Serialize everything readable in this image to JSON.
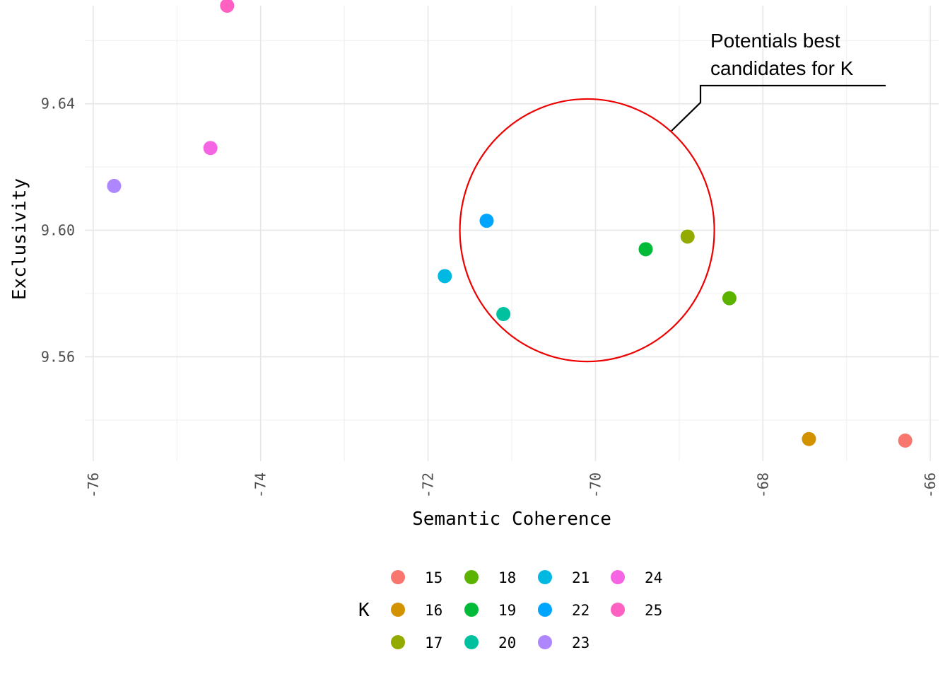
{
  "chart_data": {
    "type": "scatter",
    "xlabel": "Semantic Coherence",
    "ylabel": "Exclusivity",
    "xlim": [
      -76.1,
      -65.9
    ],
    "ylim": [
      9.527,
      9.671
    ],
    "x_ticks": [
      -76,
      -74,
      -72,
      -70,
      -68,
      -66
    ],
    "x_tick_labels": [
      "-76",
      "-74",
      "-72",
      "-70",
      "-68",
      "-66"
    ],
    "y_ticks": [
      9.56,
      9.6,
      9.64
    ],
    "y_tick_labels": [
      "9.56",
      "9.60",
      "9.64"
    ],
    "grid": true,
    "legend": {
      "title": "K",
      "placement": "bottom",
      "entries": [
        {
          "label": "15",
          "color": "#F8766D"
        },
        {
          "label": "16",
          "color": "#D39200"
        },
        {
          "label": "17",
          "color": "#93AA00"
        },
        {
          "label": "18",
          "color": "#5BB300"
        },
        {
          "label": "19",
          "color": "#00BA38"
        },
        {
          "label": "20",
          "color": "#00C19F"
        },
        {
          "label": "21",
          "color": "#00B9E3"
        },
        {
          "label": "22",
          "color": "#00A5FF"
        },
        {
          "label": "23",
          "color": "#AE87FF"
        },
        {
          "label": "24",
          "color": "#F564E3"
        },
        {
          "label": "25",
          "color": "#FF61C3"
        }
      ]
    },
    "points": [
      {
        "k": "15",
        "x": -66.3,
        "y": 9.5335
      },
      {
        "k": "16",
        "x": -67.45,
        "y": 9.534
      },
      {
        "k": "17",
        "x": -68.9,
        "y": 9.598
      },
      {
        "k": "18",
        "x": -68.4,
        "y": 9.5785
      },
      {
        "k": "19",
        "x": -69.4,
        "y": 9.594
      },
      {
        "k": "20",
        "x": -71.1,
        "y": 9.5735
      },
      {
        "k": "21",
        "x": -71.8,
        "y": 9.5855
      },
      {
        "k": "22",
        "x": -71.3,
        "y": 9.603
      },
      {
        "k": "23",
        "x": -75.75,
        "y": 9.614
      },
      {
        "k": "24",
        "x": -74.6,
        "y": 9.626
      },
      {
        "k": "25",
        "x": -74.4,
        "y": 9.671
      }
    ],
    "annotation": {
      "text_lines": [
        "Potentials best",
        "candidates for K"
      ],
      "highlight_circle": {
        "cx": -70.1,
        "cy": 9.6,
        "rx": 1.52,
        "ry": 0.0415,
        "color": "#EE0000"
      }
    }
  }
}
